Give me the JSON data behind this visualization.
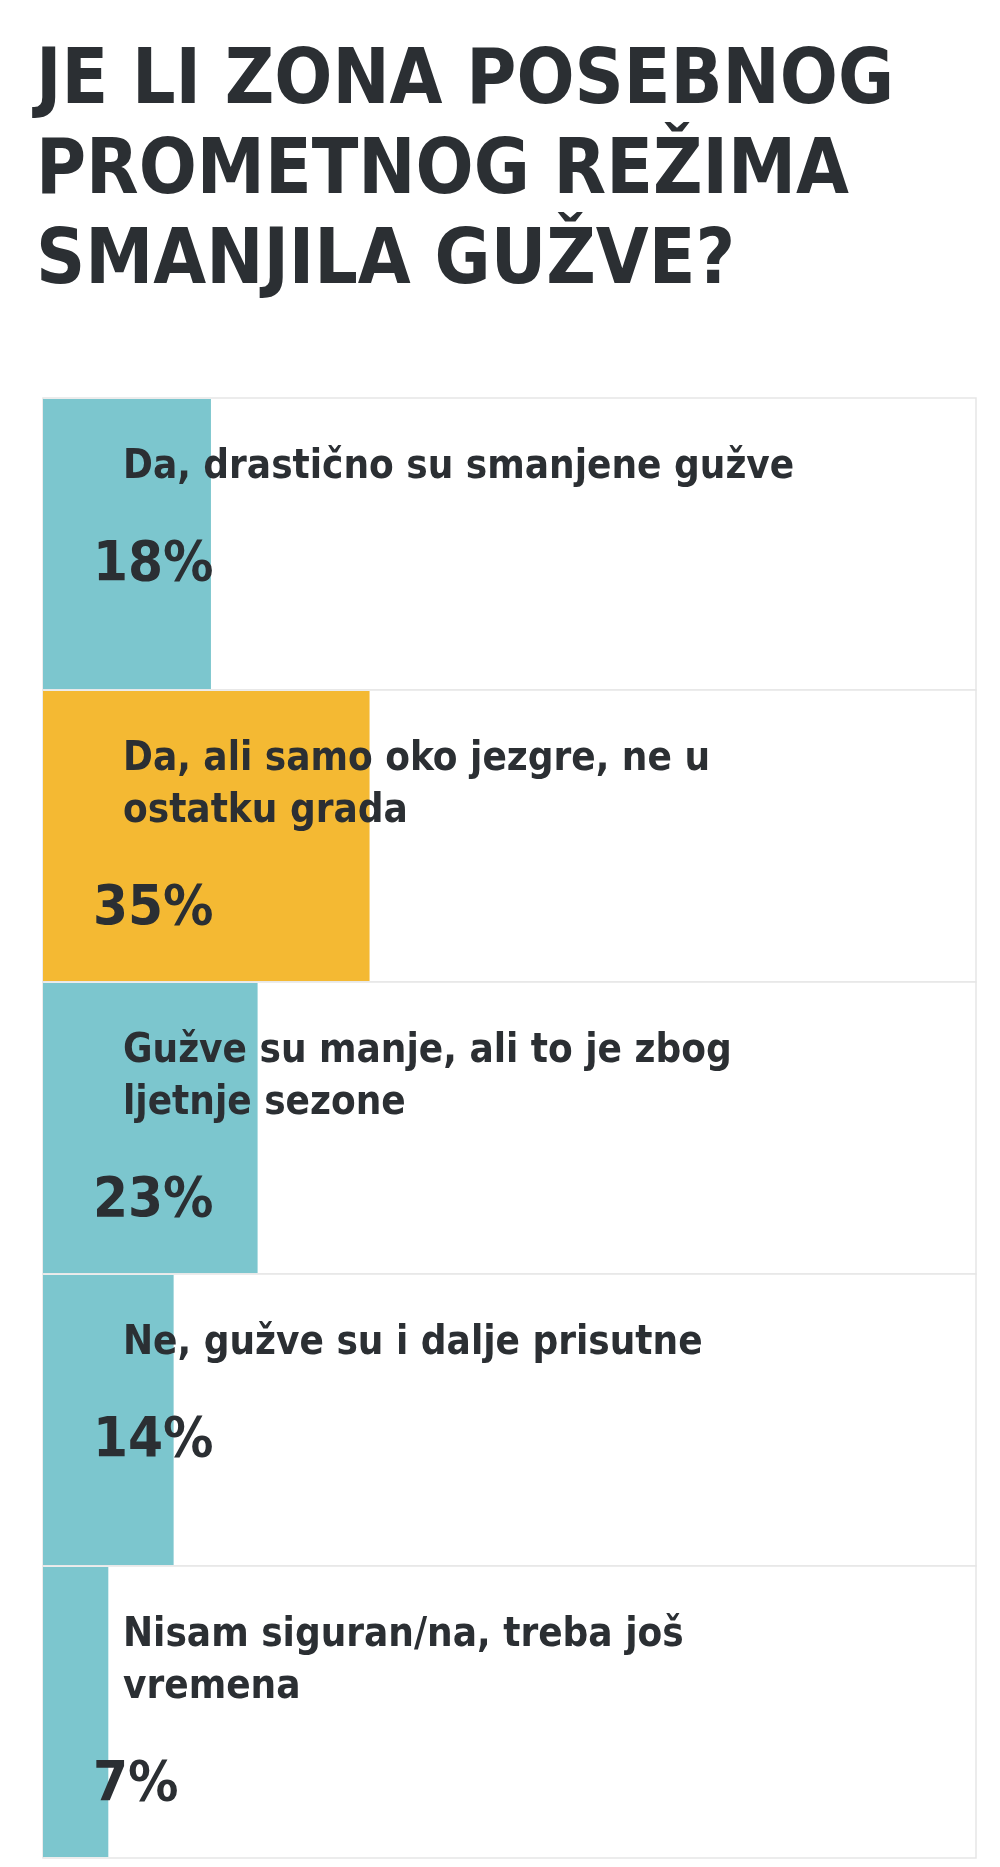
{
  "chart_data": {
    "type": "bar",
    "orientation": "horizontal",
    "title": "JE LI ZONA POSEBNOG PROMETNOG REŽIMA SMANJILA GUŽVE?",
    "categories": [
      "Da, drastično su smanjene gužve",
      "Da, ali samo oko jezgre, ne u ostatku grada",
      "Gužve su manje, ali to je zbog ljetnje sezone",
      "Ne, gužve su i dalje prisutne",
      "Nisam siguran/na, treba još vremena"
    ],
    "values": [
      18,
      35,
      23,
      14,
      7
    ],
    "colors": [
      "#7cc6ce",
      "#f4b933",
      "#7cc6ce",
      "#7cc6ce",
      "#7cc6ce"
    ],
    "value_labels": [
      "18%",
      "35%",
      "23%",
      "14%",
      "7%"
    ],
    "xlim": [
      0,
      100
    ],
    "tick_labels": false
  }
}
